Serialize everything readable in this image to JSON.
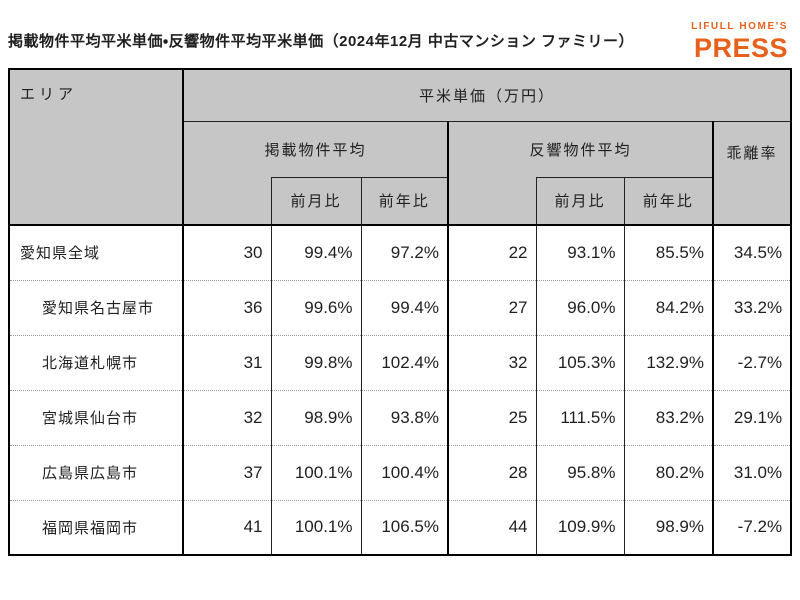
{
  "logo": {
    "line1": "LIFULL HOME'S",
    "line2": "PRESS"
  },
  "colors": {
    "logo_orange": "#E8611C",
    "header_bg": "#C6C6C6",
    "border_black": "#000000",
    "row_divider": "#9A9A9A",
    "text": "#1F1F1F"
  },
  "chart_data": {
    "type": "table",
    "title": "掲載物件平均平米単価・反響物件平均平米単価（2024年12月 中古マンション ファミリー）",
    "header": {
      "area": "エリア",
      "unit_group": "平米単価（万円）",
      "listed_group": "掲載物件平均",
      "inquiry_group": "反響物件平均",
      "divergence": "乖離率",
      "mom": "前月比",
      "yoy": "前年比"
    },
    "rows": [
      {
        "area": "愛知県全域",
        "indent": false,
        "listed_avg": "30",
        "listed_mom": "99.4%",
        "listed_yoy": "97.2%",
        "inquiry_avg": "22",
        "inquiry_mom": "93.1%",
        "inquiry_yoy": "85.5%",
        "divergence": "34.5%"
      },
      {
        "area": "愛知県名古屋市",
        "indent": true,
        "listed_avg": "36",
        "listed_mom": "99.6%",
        "listed_yoy": "99.4%",
        "inquiry_avg": "27",
        "inquiry_mom": "96.0%",
        "inquiry_yoy": "84.2%",
        "divergence": "33.2%"
      },
      {
        "area": "北海道札幌市",
        "indent": true,
        "listed_avg": "31",
        "listed_mom": "99.8%",
        "listed_yoy": "102.4%",
        "inquiry_avg": "32",
        "inquiry_mom": "105.3%",
        "inquiry_yoy": "132.9%",
        "divergence": "-2.7%"
      },
      {
        "area": "宮城県仙台市",
        "indent": true,
        "listed_avg": "32",
        "listed_mom": "98.9%",
        "listed_yoy": "93.8%",
        "inquiry_avg": "25",
        "inquiry_mom": "111.5%",
        "inquiry_yoy": "83.2%",
        "divergence": "29.1%"
      },
      {
        "area": "広島県広島市",
        "indent": true,
        "listed_avg": "37",
        "listed_mom": "100.1%",
        "listed_yoy": "100.4%",
        "inquiry_avg": "28",
        "inquiry_mom": "95.8%",
        "inquiry_yoy": "80.2%",
        "divergence": "31.0%"
      },
      {
        "area": "福岡県福岡市",
        "indent": true,
        "listed_avg": "41",
        "listed_mom": "100.1%",
        "listed_yoy": "106.5%",
        "inquiry_avg": "44",
        "inquiry_mom": "109.9%",
        "inquiry_yoy": "98.9%",
        "divergence": "-7.2%"
      }
    ]
  }
}
